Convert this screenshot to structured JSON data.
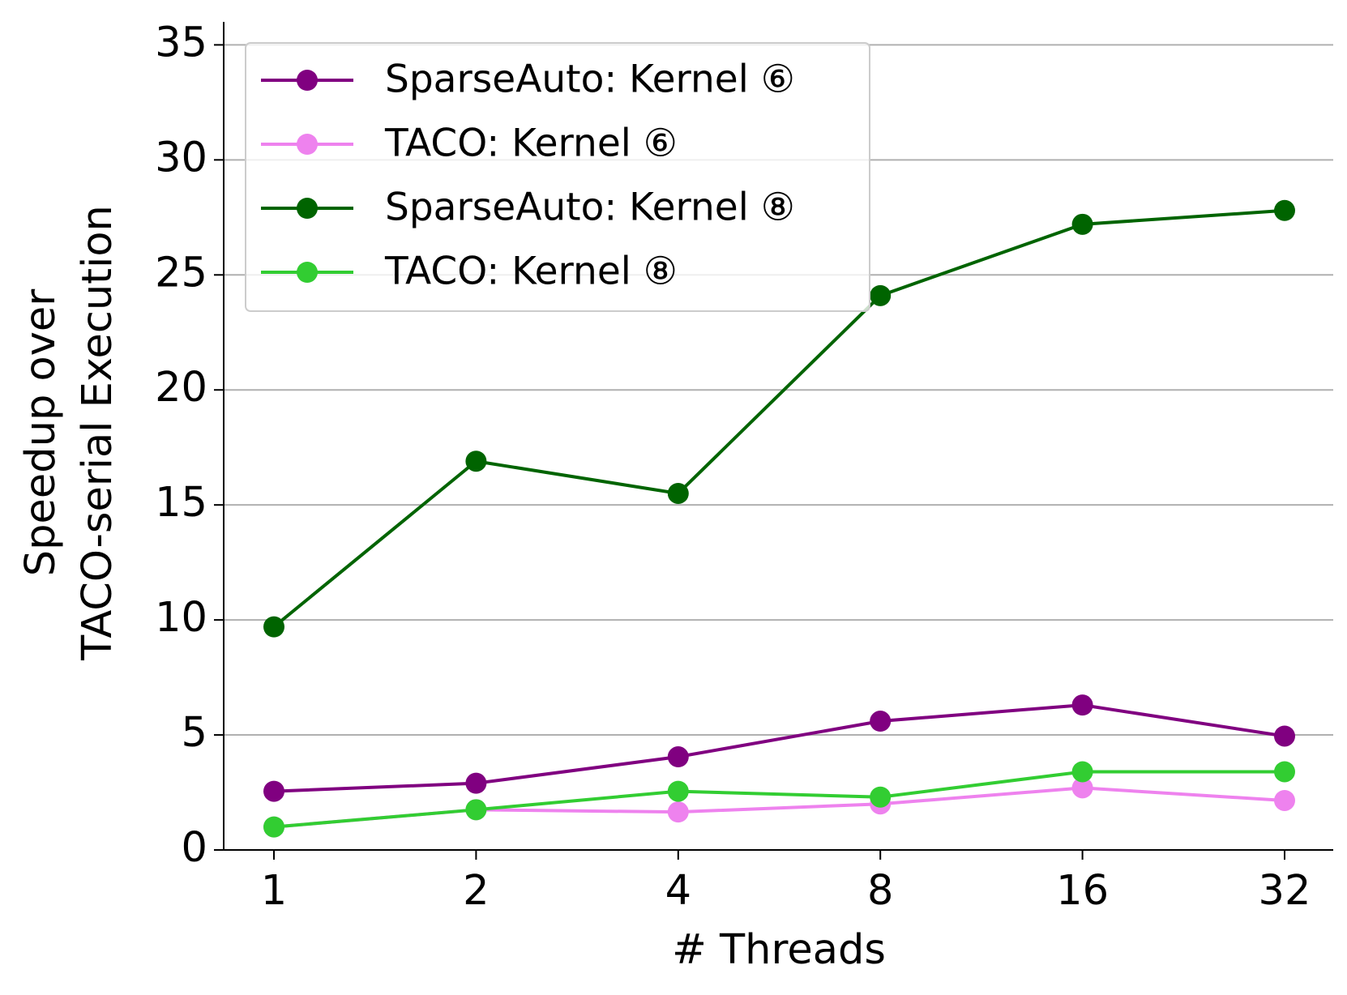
{
  "chart_data": {
    "type": "line",
    "xlabel": "# Threads",
    "ylabel": [
      "Speedup over",
      "TACO-serial Execution"
    ],
    "categories": [
      "1",
      "2",
      "4",
      "8",
      "16",
      "32"
    ],
    "series": [
      {
        "name": "SparseAuto: Kernel ⑥",
        "color": "#800080",
        "values": [
          2.55,
          2.9,
          4.05,
          5.6,
          6.3,
          4.95
        ]
      },
      {
        "name": "TACO: Kernel ⑥",
        "color": "#ee82ee",
        "values": [
          1.0,
          1.75,
          1.65,
          2.0,
          2.7,
          2.15
        ]
      },
      {
        "name": "SparseAuto: Kernel ⑧",
        "color": "#006400",
        "values": [
          9.7,
          16.9,
          15.5,
          24.1,
          27.2,
          27.8
        ]
      },
      {
        "name": "TACO: Kernel ⑧",
        "color": "#32cd32",
        "values": [
          1.0,
          1.75,
          2.55,
          2.3,
          3.4,
          3.4
        ]
      }
    ],
    "ylim": [
      0,
      36
    ],
    "yticks": [
      0,
      5,
      10,
      15,
      20,
      25,
      30,
      35
    ],
    "grid": true,
    "legend": "upper-left"
  }
}
